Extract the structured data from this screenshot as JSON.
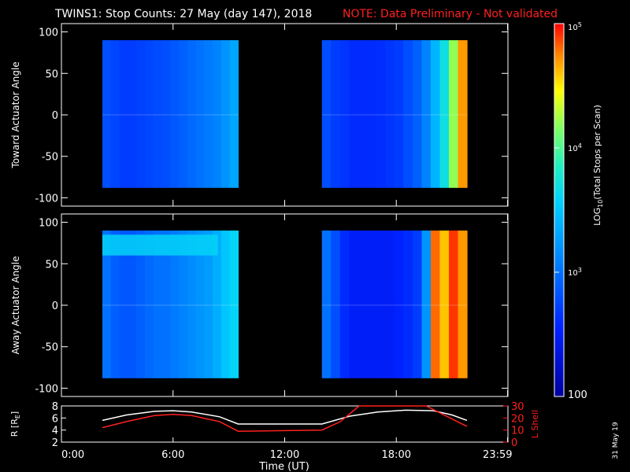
{
  "title": "TWINS1: Stop Counts: 27 May (day 147), 2018",
  "note": "NOTE: Data Preliminary - Not validated",
  "stamp": "31 May 19",
  "chart_data": [
    {
      "type": "heatmap",
      "ylabel": "Toward Actuator Angle",
      "ylim": [
        -110,
        110
      ],
      "yticks": [
        100,
        50,
        0,
        -50,
        -100
      ],
      "xlim": [
        0,
        24
      ],
      "blocks": [
        {
          "x_start": 2.2,
          "x_end": 9.5,
          "y_start": -88,
          "y_end": 90,
          "log10_profile": [
            2.8,
            2.75,
            2.7,
            2.7,
            2.72,
            2.75,
            2.78,
            2.8,
            2.85,
            2.9,
            2.95,
            3.0,
            3.05,
            3.1,
            3.2,
            3.3
          ]
        },
        {
          "x_start": 14.0,
          "x_end": 21.8,
          "y_start": -88,
          "y_end": 90,
          "log10_profile": [
            2.8,
            2.7,
            2.65,
            2.6,
            2.6,
            2.6,
            2.62,
            2.65,
            2.7,
            2.8,
            2.9,
            3.1,
            3.4,
            3.7,
            4.2,
            4.7
          ]
        }
      ]
    },
    {
      "type": "heatmap",
      "ylabel": "Away Actuator Angle",
      "ylim": [
        -110,
        110
      ],
      "yticks": [
        100,
        50,
        0,
        -50,
        -100
      ],
      "xlim": [
        0,
        24
      ],
      "blocks": [
        {
          "x_start": 2.2,
          "x_end": 9.5,
          "y_start": -88,
          "y_end": 90,
          "log10_profile": [
            3.0,
            2.9,
            2.85,
            2.85,
            2.9,
            2.95,
            3.0,
            3.0,
            3.05,
            3.1,
            3.15,
            3.2,
            3.25,
            3.35,
            3.5,
            3.6
          ],
          "band": {
            "y_start": 60,
            "y_end": 85,
            "log10": 3.6
          }
        },
        {
          "x_start": 14.0,
          "x_end": 21.8,
          "y_start": -88,
          "y_end": 90,
          "log10_profile": [
            3.0,
            2.8,
            2.6,
            2.5,
            2.5,
            2.5,
            2.5,
            2.5,
            2.55,
            2.6,
            2.7,
            3.2,
            4.8,
            4.6,
            4.9,
            4.7
          ]
        }
      ]
    },
    {
      "type": "line",
      "xlabel": "Time (UT)",
      "xlim": [
        0,
        24
      ],
      "xtick_labels": [
        "0:00",
        "6:00",
        "12:00",
        "18:00",
        "23:59"
      ],
      "xtick_values": [
        0,
        6,
        12,
        18,
        23.98
      ],
      "ylabel_left": "R [R",
      "ylabel_left_sub": "E",
      "ylabel_left_end": "]",
      "ylim_left": [
        2,
        8
      ],
      "yticks_left": [
        2,
        4,
        6,
        8
      ],
      "ylabel_right": "L Shell",
      "ylim_right": [
        0,
        30
      ],
      "yticks_right": [
        0,
        10,
        20,
        30
      ],
      "series": [
        {
          "axis": "left",
          "color": "#ffffff",
          "x": [
            2.2,
            3.5,
            5.0,
            6.0,
            7.0,
            8.5,
            9.5,
            12.0,
            14.0,
            15.5,
            17.0,
            18.5,
            20.0,
            21.0,
            21.8
          ],
          "y": [
            5.6,
            6.5,
            7.1,
            7.2,
            7.0,
            6.2,
            5.0,
            5.0,
            5.0,
            6.3,
            7.0,
            7.3,
            7.2,
            6.5,
            5.6
          ]
        },
        {
          "axis": "right",
          "color": "#ff2020",
          "x": [
            2.2,
            3.5,
            5.0,
            6.0,
            7.0,
            8.5,
            9.5,
            12.0,
            14.0,
            15.0,
            16.0,
            19.6,
            20.5,
            21.8
          ],
          "y": [
            12,
            17,
            22,
            23,
            22,
            17,
            9,
            9.5,
            10,
            17,
            31,
            31,
            23,
            13
          ]
        }
      ]
    },
    {
      "type": "colorbar",
      "label_log": "LOG",
      "label_sub": "10",
      "label_rest": "(Total Stops per Scan)",
      "scale": "log",
      "range": [
        100,
        100000
      ],
      "tick_labels": [
        {
          "base": "10",
          "exp": "5",
          "log": 5
        },
        {
          "base": "10",
          "exp": "4",
          "log": 4
        },
        {
          "base": "10",
          "exp": "3",
          "log": 3
        }
      ],
      "bottom_label": "100"
    }
  ]
}
